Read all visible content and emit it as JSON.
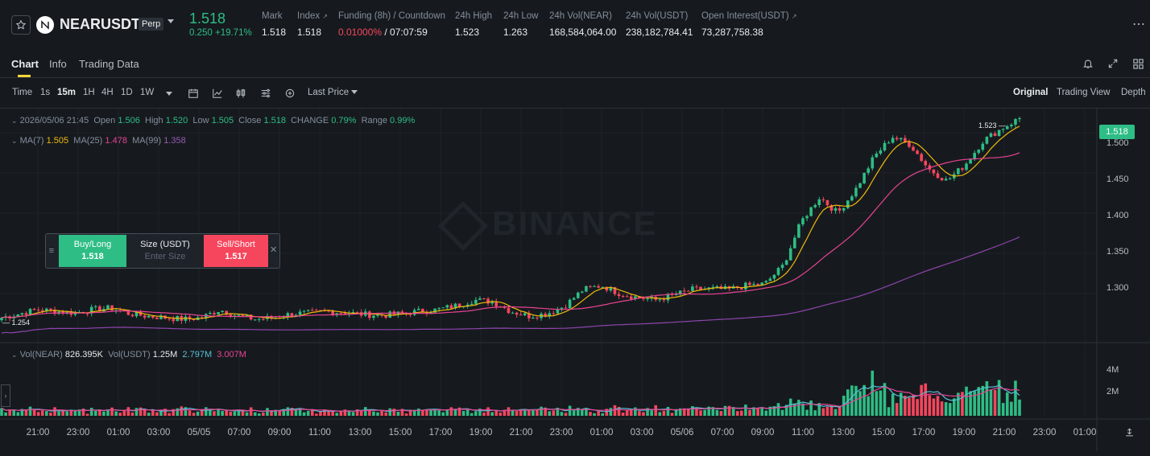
{
  "header": {
    "symbol": "NEARUSDT",
    "contract_badge": "Perp",
    "last_price": "1.518",
    "change": "0.250 +19.71%",
    "stats": [
      {
        "label": "Mark",
        "value": "1.518"
      },
      {
        "label": "Index",
        "value": "1.518"
      },
      {
        "label": "Funding (8h) / Countdown",
        "value_rate": "0.01000%",
        "value_countdown": " / 07:07:59"
      },
      {
        "label": "24h High",
        "value": "1.523"
      },
      {
        "label": "24h Low",
        "value": "1.263"
      },
      {
        "label": "24h Vol(NEAR)",
        "value": "168,584,064.00"
      },
      {
        "label": "24h Vol(USDT)",
        "value": "238,182,784.41"
      },
      {
        "label": "Open Interest(USDT)",
        "value": "73,287,758.38"
      }
    ]
  },
  "tabs": [
    "Chart",
    "Info",
    "Trading Data"
  ],
  "active_tab": "Chart",
  "toolbar": {
    "timeframes": [
      "Time",
      "1s",
      "15m",
      "1H",
      "4H",
      "1D",
      "1W"
    ],
    "active_timeframe": "15m",
    "price_type": "Last Price",
    "views": [
      "Original",
      "Trading View",
      "Depth"
    ],
    "active_view": "Original"
  },
  "ohlc_legend": {
    "date": "2026/05/06 21:45",
    "open_label": "Open",
    "open": "1.506",
    "high_label": "High",
    "high": "1.520",
    "low_label": "Low",
    "low": "1.505",
    "close_label": "Close",
    "close": "1.518",
    "change_label": "CHANGE",
    "change": "0.79%",
    "range_label": "Range",
    "range": "0.99%"
  },
  "ma_legend": {
    "ma7_label": "MA(7)",
    "ma7": "1.505",
    "ma25_label": "MA(25)",
    "ma25": "1.478",
    "ma99_label": "MA(99)",
    "ma99": "1.358"
  },
  "vol_legend": {
    "vol_near_label": "Vol(NEAR)",
    "vol_near": "826.395K",
    "vol_usdt_label": "Vol(USDT)",
    "vol_usdt": "1.25M",
    "ma1": "2.797M",
    "ma2": "3.007M"
  },
  "watermark": "BINANCE",
  "order_widget": {
    "buy_label": "Buy/Long",
    "buy_price": "1.518",
    "size_label": "Size (USDT)",
    "size_placeholder": "Enter Size",
    "sell_label": "Sell/Short",
    "sell_price": "1.517"
  },
  "price_axis": {
    "ticks": [
      "1.500",
      "1.450",
      "1.400",
      "1.350",
      "1.300"
    ],
    "current_price_tag": "1.518",
    "high_marker": "1.523",
    "low_marker": "1.254"
  },
  "volume_axis": {
    "ticks": [
      "4M",
      "2M"
    ]
  },
  "time_axis": [
    "21:00",
    "23:00",
    "01:00",
    "03:00",
    "05/05",
    "07:00",
    "09:00",
    "11:00",
    "13:00",
    "15:00",
    "17:00",
    "19:00",
    "21:00",
    "23:00",
    "01:00",
    "03:00",
    "05/06",
    "07:00",
    "09:00",
    "11:00",
    "13:00",
    "15:00",
    "17:00",
    "19:00",
    "21:00",
    "23:00",
    "01:00"
  ],
  "colors": {
    "up": "#2ebd85",
    "down": "#f6465d",
    "ma7": "#f0b90b",
    "ma25": "#e84393",
    "ma99": "#8e44ad",
    "accent": "#fcd535"
  },
  "chart_data": {
    "type": "candlestick",
    "interval": "15m",
    "high": 1.523,
    "low": 1.254,
    "last": 1.518,
    "ylim": [
      1.24,
      1.53
    ],
    "anchor_closes": [
      1.27,
      1.275,
      1.28,
      1.278,
      1.276,
      1.28,
      1.282,
      1.275,
      1.272,
      1.27,
      1.268,
      1.27,
      1.28,
      1.272,
      1.268,
      1.27,
      1.275,
      1.276,
      1.278,
      1.276,
      1.274,
      1.273,
      1.275,
      1.278,
      1.28,
      1.285,
      1.292,
      1.29,
      1.278,
      1.272,
      1.275,
      1.285,
      1.305,
      1.31,
      1.3,
      1.295,
      1.292,
      1.298,
      1.305,
      1.306,
      1.305,
      1.31,
      1.312,
      1.335,
      1.39,
      1.42,
      1.4,
      1.43,
      1.47,
      1.495,
      1.485,
      1.455,
      1.44,
      1.46,
      1.49,
      1.505,
      1.518
    ]
  }
}
